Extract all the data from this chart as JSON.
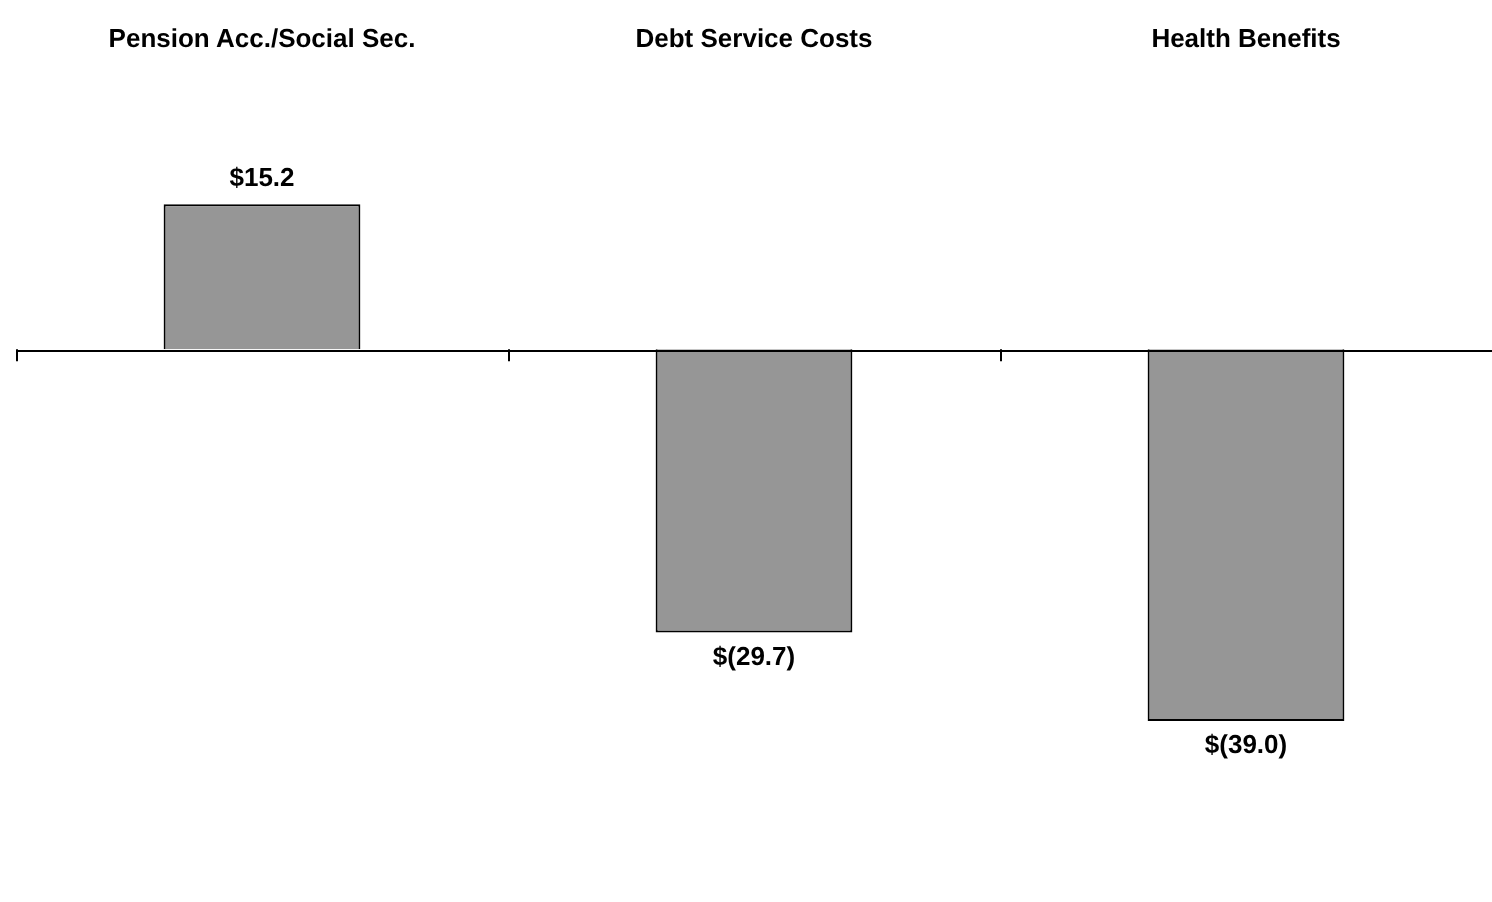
{
  "chart_data": {
    "type": "bar",
    "categories": [
      "Pension Acc./Social Sec.",
      "Debt Service Costs",
      "Health Benefits"
    ],
    "values": [
      15.2,
      -29.7,
      -39.0
    ],
    "value_labels": [
      "$15.2",
      "$(29.7)",
      "$(39.0)"
    ],
    "color": "#969696",
    "grid": false,
    "legend": false
  }
}
